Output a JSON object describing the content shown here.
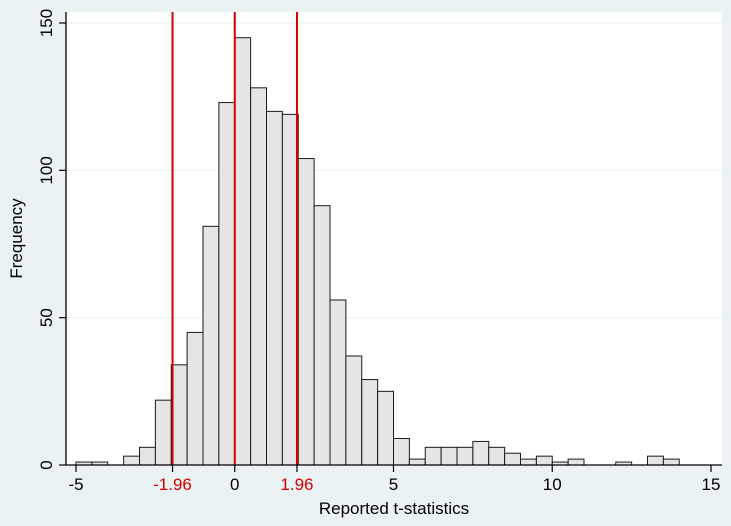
{
  "chart_data": {
    "type": "bar",
    "xlabel": "Reported t-statistics",
    "ylabel": "Frequency",
    "xlim": [
      -5,
      15
    ],
    "ylim": [
      0,
      150
    ],
    "grid": "horizontal",
    "bin_width": 0.5,
    "bins": [
      {
        "x": -4.75,
        "value": 1
      },
      {
        "x": -4.25,
        "value": 1
      },
      {
        "x": -3.25,
        "value": 3
      },
      {
        "x": -2.75,
        "value": 6
      },
      {
        "x": -2.25,
        "value": 22
      },
      {
        "x": -1.75,
        "value": 34
      },
      {
        "x": -1.25,
        "value": 45
      },
      {
        "x": -0.75,
        "value": 81
      },
      {
        "x": -0.25,
        "value": 123
      },
      {
        "x": 0.25,
        "value": 145
      },
      {
        "x": 0.75,
        "value": 128
      },
      {
        "x": 1.25,
        "value": 120
      },
      {
        "x": 1.75,
        "value": 119
      },
      {
        "x": 2.25,
        "value": 104
      },
      {
        "x": 2.75,
        "value": 88
      },
      {
        "x": 3.25,
        "value": 56
      },
      {
        "x": 3.75,
        "value": 37
      },
      {
        "x": 4.25,
        "value": 29
      },
      {
        "x": 4.75,
        "value": 25
      },
      {
        "x": 5.25,
        "value": 9
      },
      {
        "x": 5.75,
        "value": 2
      },
      {
        "x": 6.25,
        "value": 6
      },
      {
        "x": 6.75,
        "value": 6
      },
      {
        "x": 7.25,
        "value": 6
      },
      {
        "x": 7.75,
        "value": 8
      },
      {
        "x": 8.25,
        "value": 6
      },
      {
        "x": 8.75,
        "value": 4
      },
      {
        "x": 9.25,
        "value": 2
      },
      {
        "x": 9.75,
        "value": 3
      },
      {
        "x": 10.25,
        "value": 1
      },
      {
        "x": 10.75,
        "value": 2
      },
      {
        "x": 12.25,
        "value": 1
      },
      {
        "x": 13.25,
        "value": 3
      },
      {
        "x": 13.75,
        "value": 2
      }
    ],
    "x_ticks": [
      {
        "value": -5,
        "label": "-5"
      },
      {
        "value": 0,
        "label": "0"
      },
      {
        "value": 5,
        "label": "5"
      },
      {
        "value": 10,
        "label": "10"
      },
      {
        "value": 15,
        "label": "15"
      }
    ],
    "y_ticks": [
      {
        "value": 0,
        "label": "0"
      },
      {
        "value": 50,
        "label": "50"
      },
      {
        "value": 100,
        "label": "100"
      },
      {
        "value": 150,
        "label": "150"
      }
    ],
    "reference_lines": [
      {
        "x": -1.96,
        "label": "-1.96"
      },
      {
        "x": 0,
        "label": ""
      },
      {
        "x": 1.96,
        "label": "1.96"
      }
    ],
    "colors": {
      "background": "#eaf2f3",
      "plot_background": "#ffffff",
      "bar_fill": "#e5e5e5",
      "bar_stroke": "#1a1a1a",
      "reference_line": "#d40000",
      "gridline": "#eaf2f3"
    }
  }
}
